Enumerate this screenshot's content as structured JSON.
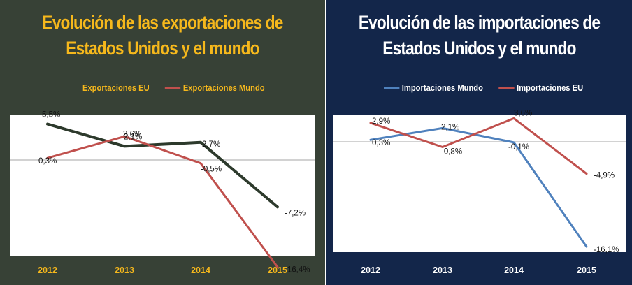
{
  "chart_data": [
    {
      "type": "line",
      "title_line1": "Evolución de las exportaciones de",
      "title_line2": "Estados Unidos y el mundo",
      "categories": [
        "2012",
        "2013",
        "2014",
        "2015"
      ],
      "ylim": [
        -20,
        8
      ],
      "series": [
        {
          "name": "Exportaciones EU",
          "color": "#2d3a2c",
          "values": [
            5.5,
            2.1,
            2.7,
            -7.2
          ],
          "labels": [
            "5,5%",
            "2,1%",
            "2,7%",
            "-7,2%"
          ]
        },
        {
          "name": "Exportaciones Mundo",
          "color": "#c0504d",
          "values": [
            0.3,
            3.6,
            -0.5,
            -16.4
          ],
          "labels": [
            "0,3%",
            "3,6%",
            "-0,5%",
            "-16,4%"
          ]
        }
      ],
      "colors": {
        "background": "#374136",
        "title": "#f6b81c"
      }
    },
    {
      "type": "line",
      "title_line1": "Evolución de las importaciones de",
      "title_line2": "Estados Unidos y el mundo",
      "categories": [
        "2012",
        "2013",
        "2014",
        "2015"
      ],
      "ylim": [
        -20,
        8
      ],
      "series": [
        {
          "name": "Importaciones Mundo",
          "color": "#4f81bd",
          "values": [
            0.3,
            2.1,
            -0.1,
            -16.1
          ],
          "labels": [
            "0,3%",
            "2,1%",
            "-0,1%",
            "-16,1%"
          ]
        },
        {
          "name": "Importaciones EU",
          "color": "#c0504d",
          "values": [
            2.9,
            -0.8,
            3.6,
            -4.9
          ],
          "labels": [
            "2,9%",
            "-0,8%",
            "3,6%",
            "-4,9%"
          ]
        }
      ],
      "colors": {
        "background": "#13264a",
        "title": "#ffffff"
      }
    }
  ]
}
